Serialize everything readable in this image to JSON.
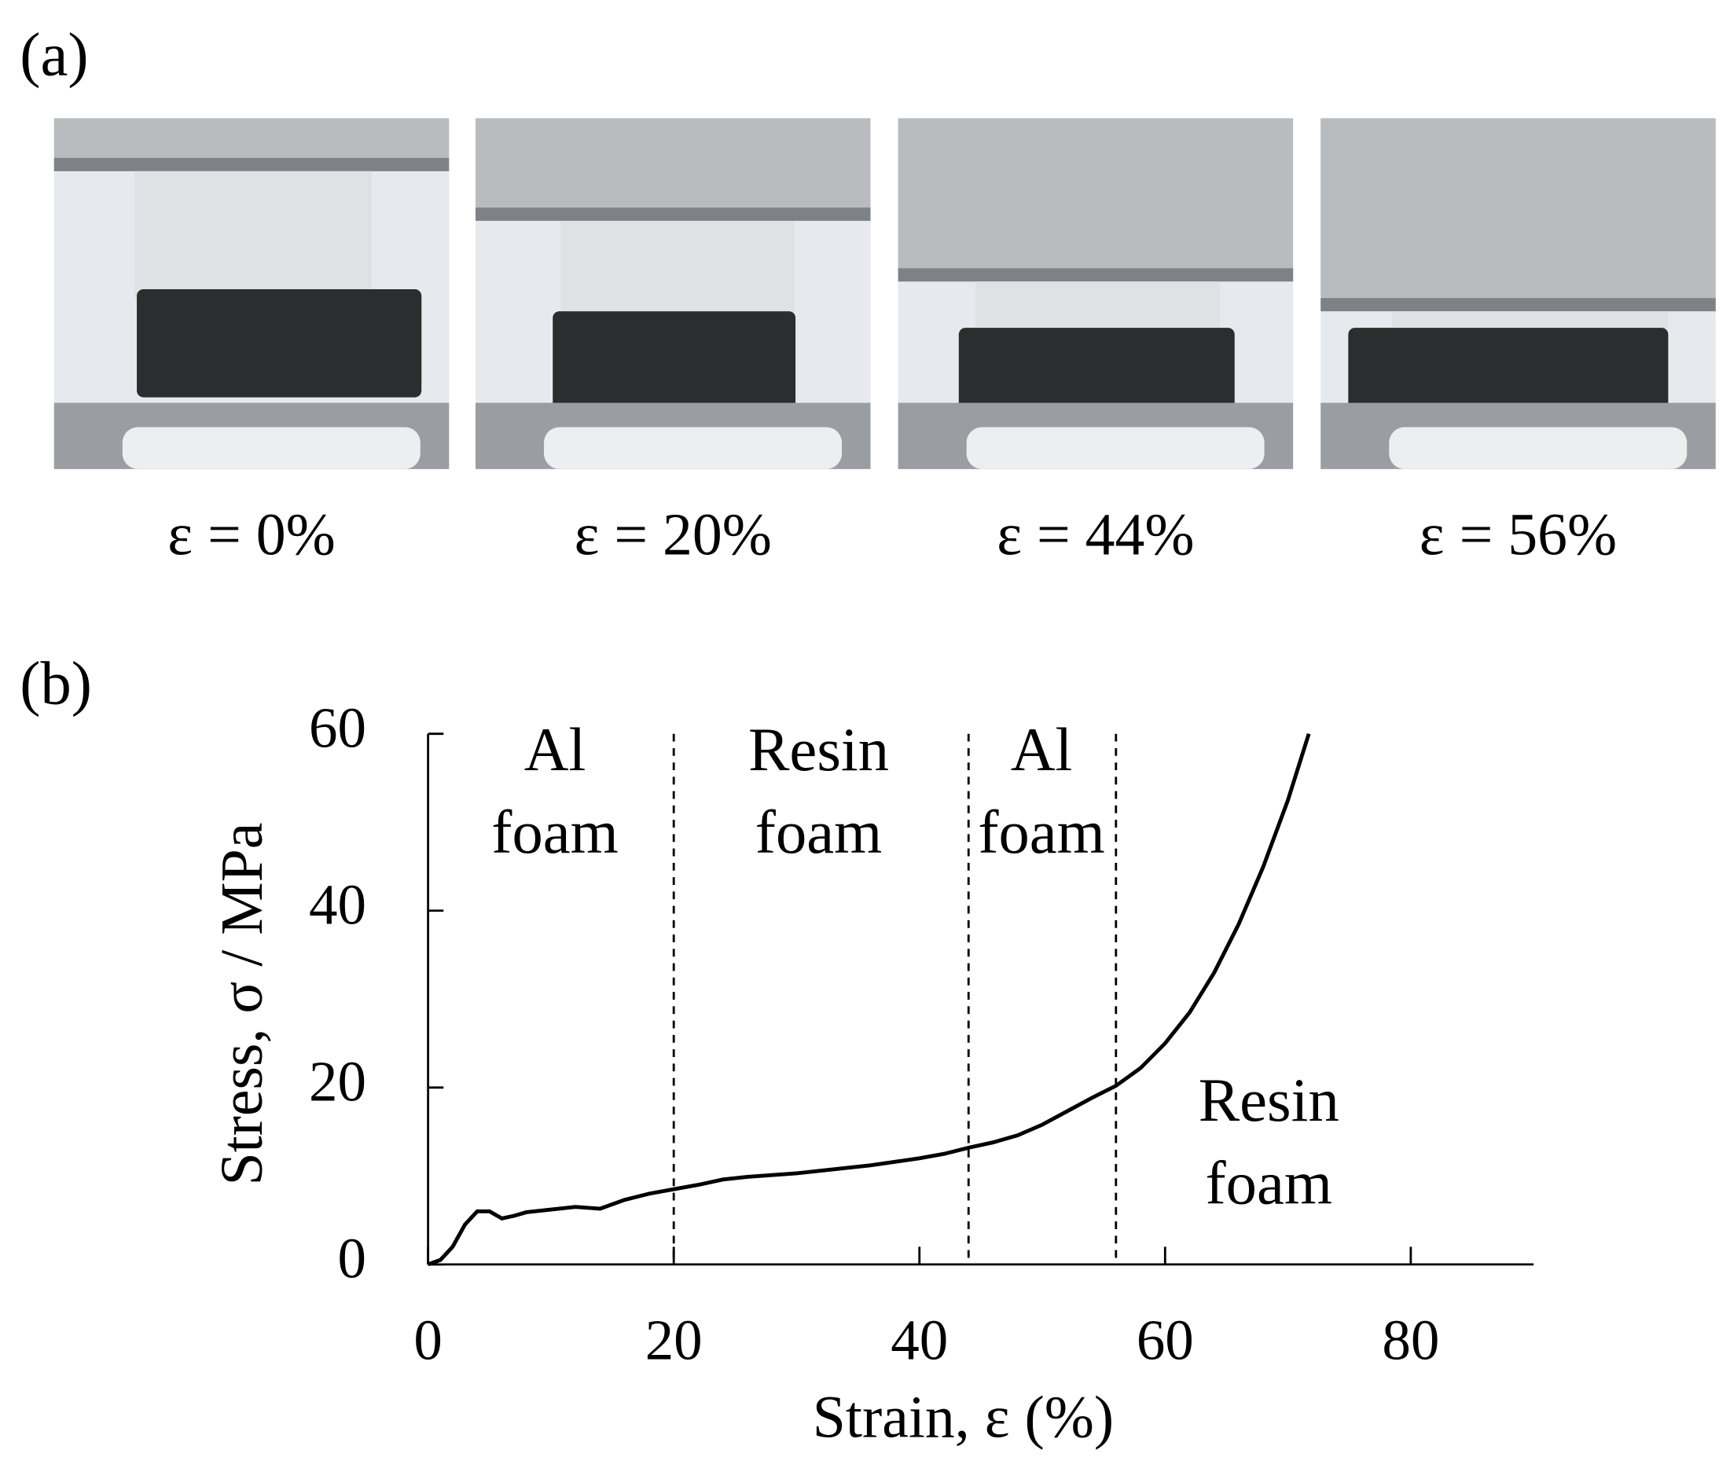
{
  "panel_a": {
    "label": "(a)",
    "captions": [
      "ε = 0%",
      "ε = 20%",
      "ε = 44%",
      "ε = 56%"
    ]
  },
  "chart_data": {
    "type": "line",
    "panel_label": "(b)",
    "x_label": "Strain, ε (%)",
    "y_label": "Stress, σ / MPa",
    "x": [
      0,
      1,
      2,
      3,
      4,
      5,
      6,
      7,
      8,
      10,
      12,
      14,
      16,
      18,
      20,
      22,
      24,
      26,
      28,
      30,
      32,
      34,
      36,
      38,
      40,
      42,
      44,
      46,
      48,
      50,
      52,
      54,
      56,
      58,
      60,
      62,
      64,
      66,
      68,
      70,
      71.7
    ],
    "series": [
      {
        "color": "#000000",
        "values": [
          0,
          0.5,
          2,
          4.5,
          6,
          6,
          5.2,
          5.5,
          5.9,
          6.2,
          6.5,
          6.3,
          7.3,
          8,
          8.5,
          9,
          9.6,
          9.9,
          10.1,
          10.3,
          10.6,
          10.9,
          11.2,
          11.6,
          12,
          12.5,
          13.2,
          13.8,
          14.6,
          15.8,
          17.3,
          18.8,
          20.2,
          22.2,
          25,
          28.5,
          33,
          38.5,
          45,
          52.5,
          60
        ]
      }
    ],
    "xlim": [
      0,
      90
    ],
    "ylim": [
      0,
      60
    ],
    "xticks": [
      0,
      20,
      40,
      60,
      80
    ],
    "yticks": [
      0,
      20,
      40,
      60
    ],
    "dividers": [
      20,
      44,
      56
    ],
    "annotations": [
      {
        "lines": [
          "Al",
          "foam"
        ]
      },
      {
        "lines": [
          "Resin",
          "foam"
        ]
      },
      {
        "lines": [
          "Al",
          "foam"
        ]
      },
      {
        "lines": [
          "Resin",
          "foam"
        ]
      }
    ]
  }
}
